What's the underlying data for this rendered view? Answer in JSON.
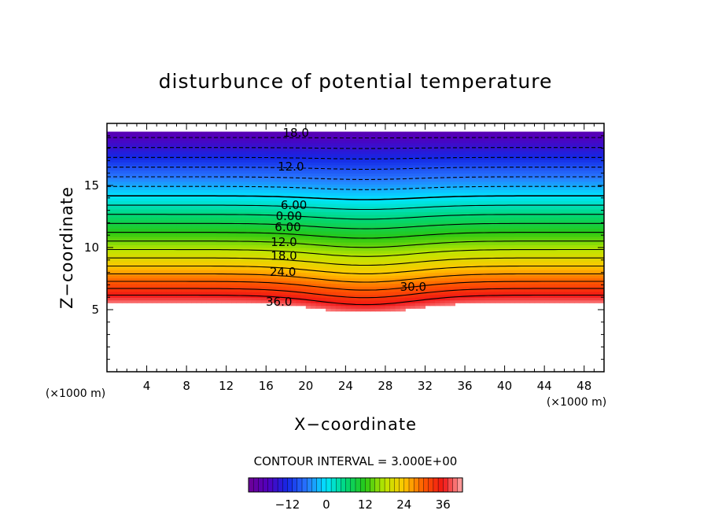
{
  "chart_data": {
    "type": "heatmap",
    "title": "disturbunce of potential temperature",
    "xlabel": "X−coordinate",
    "ylabel": "Z−coordinate",
    "x_unit": "(×1000 m)",
    "y_unit": "(×1000 m)",
    "xlim": [
      0,
      50
    ],
    "ylim": [
      0,
      20
    ],
    "x_ticks": [
      4,
      8,
      12,
      16,
      20,
      24,
      28,
      32,
      36,
      40,
      44,
      48
    ],
    "y_ticks": [
      5,
      10,
      15
    ],
    "contour_interval_text": "CONTOUR INTERVAL = 3.000E+00",
    "colorbar": {
      "min": -24,
      "max": 42,
      "ticks": [
        -12,
        0,
        12,
        24,
        36
      ]
    },
    "field_description_values": {
      "positive_peak": 36,
      "negative_peak": -18
    },
    "contour_labels": [
      {
        "text": "18.0",
        "x": 19.0,
        "z": 19.2,
        "dashed": true
      },
      {
        "text": "12.0",
        "x": 18.5,
        "z": 16.5,
        "dashed": true
      },
      {
        "text": "6.00",
        "x": 18.8,
        "z": 13.4,
        "dashed": true
      },
      {
        "text": "0.00",
        "x": 18.3,
        "z": 12.5,
        "dashed": false
      },
      {
        "text": "6.00",
        "x": 18.2,
        "z": 11.6,
        "dashed": false
      },
      {
        "text": "12.0",
        "x": 17.8,
        "z": 10.4,
        "dashed": false
      },
      {
        "text": "18.0",
        "x": 17.8,
        "z": 9.3,
        "dashed": false
      },
      {
        "text": "24.0",
        "x": 17.7,
        "z": 8.0,
        "dashed": false
      },
      {
        "text": "30.0",
        "x": 30.8,
        "z": 6.8,
        "dashed": false
      },
      {
        "text": "36.0",
        "x": 17.3,
        "z": 5.6,
        "dashed": false
      }
    ]
  }
}
